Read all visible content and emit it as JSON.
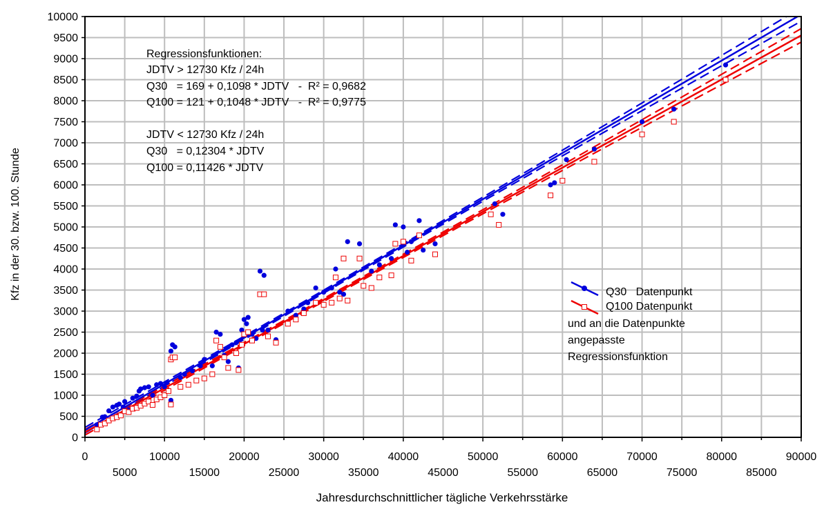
{
  "chart_data": {
    "type": "scatter",
    "title": "",
    "xlabel": "Jahresdurchschnittlicher tägliche Verkehrsstärke",
    "ylabel": "Kfz in der 30. bzw. 100. Stunde",
    "xlim": [
      0,
      90000
    ],
    "ylim": [
      0,
      10000
    ],
    "x_ticks_upper": [
      "0",
      "10000",
      "20000",
      "30000",
      "40000",
      "50000",
      "60000",
      "70000",
      "80000",
      "90000"
    ],
    "x_ticks_lower": [
      "5000",
      "15000",
      "25000",
      "35000",
      "45000",
      "55000",
      "65000",
      "75000",
      "85000"
    ],
    "y_ticks": [
      "0",
      "500",
      "1000",
      "1500",
      "2000",
      "2500",
      "3000",
      "3500",
      "4000",
      "4500",
      "5000",
      "5500",
      "6000",
      "6500",
      "7000",
      "7500",
      "8000",
      "8500",
      "9000",
      "9500",
      "10000"
    ],
    "grid": true,
    "legend_position": "right",
    "annotation": [
      "Regressionsfunktionen:",
      "JDTV > 12730 Kfz / 24h",
      "Q30   = 169 + 0,1098 * JDTV   -  R² = 0,9682",
      "Q100 = 121 + 0,1048 * JDTV   -  R² = 0,9775",
      "",
      "JDTV < 12730 Kfz / 24h",
      "Q30   = 0,12304 * JDTV",
      "Q100 = 0,11426 * JDTV"
    ],
    "legend": {
      "entries": [
        "Q30   Datenpunkt",
        "Q100 Datenpunkt"
      ],
      "note": [
        "und an die Datenpunkte",
        "angepasste",
        "Regressionsfunktion"
      ]
    },
    "colors": {
      "q30": "#0000dd",
      "q100": "#ee0000",
      "grid": "#bdbdbd"
    },
    "series": [
      {
        "name": "Q30   Datenpunkt",
        "marker": "circle",
        "points": [
          [
            1500,
            300
          ],
          [
            2200,
            480
          ],
          [
            2500,
            490
          ],
          [
            3000,
            630
          ],
          [
            3500,
            720
          ],
          [
            4000,
            760
          ],
          [
            4300,
            790
          ],
          [
            4800,
            720
          ],
          [
            5000,
            850
          ],
          [
            5500,
            650
          ],
          [
            6000,
            930
          ],
          [
            6500,
            980
          ],
          [
            6800,
            1100
          ],
          [
            7000,
            1150
          ],
          [
            7500,
            1180
          ],
          [
            8000,
            1200
          ],
          [
            8500,
            1000
          ],
          [
            9000,
            1250
          ],
          [
            9500,
            1280
          ],
          [
            10000,
            1200
          ],
          [
            10300,
            1300
          ],
          [
            10800,
            880
          ],
          [
            10800,
            2050
          ],
          [
            11000,
            2200
          ],
          [
            11300,
            2150
          ],
          [
            12000,
            1420
          ],
          [
            12500,
            1500
          ],
          [
            13500,
            1580
          ],
          [
            14500,
            1700
          ],
          [
            15000,
            1850
          ],
          [
            16000,
            1700
          ],
          [
            16500,
            2500
          ],
          [
            17000,
            2450
          ],
          [
            17500,
            1950
          ],
          [
            18000,
            1800
          ],
          [
            18500,
            2200
          ],
          [
            19000,
            2250
          ],
          [
            19300,
            1650
          ],
          [
            19700,
            2550
          ],
          [
            20000,
            2800
          ],
          [
            20300,
            2700
          ],
          [
            20500,
            2850
          ],
          [
            21000,
            2450
          ],
          [
            21500,
            2350
          ],
          [
            22000,
            3950
          ],
          [
            22300,
            2550
          ],
          [
            22500,
            3850
          ],
          [
            23000,
            2550
          ],
          [
            24000,
            2320
          ],
          [
            25500,
            3000
          ],
          [
            26500,
            2900
          ],
          [
            27500,
            3050
          ],
          [
            28000,
            3200
          ],
          [
            29000,
            3550
          ],
          [
            30000,
            3450
          ],
          [
            31000,
            3550
          ],
          [
            31500,
            4000
          ],
          [
            32000,
            3450
          ],
          [
            32500,
            3400
          ],
          [
            33000,
            4650
          ],
          [
            34500,
            4600
          ],
          [
            35000,
            3600
          ],
          [
            36000,
            3950
          ],
          [
            37000,
            4100
          ],
          [
            38500,
            4250
          ],
          [
            39000,
            5050
          ],
          [
            40000,
            5000
          ],
          [
            40500,
            4400
          ],
          [
            41000,
            4650
          ],
          [
            42000,
            5150
          ],
          [
            42500,
            4450
          ],
          [
            44000,
            4600
          ],
          [
            51500,
            5550
          ],
          [
            52500,
            5300
          ],
          [
            58500,
            6000
          ],
          [
            59000,
            6050
          ],
          [
            60500,
            6600
          ],
          [
            64000,
            6850
          ],
          [
            70000,
            7500
          ],
          [
            74000,
            7800
          ],
          [
            80500,
            8850
          ]
        ]
      },
      {
        "name": "Q100 Datenpunkt",
        "marker": "square",
        "points": [
          [
            1500,
            190
          ],
          [
            2000,
            300
          ],
          [
            2500,
            330
          ],
          [
            3000,
            400
          ],
          [
            3500,
            450
          ],
          [
            4000,
            480
          ],
          [
            4500,
            520
          ],
          [
            5000,
            620
          ],
          [
            5500,
            600
          ],
          [
            6000,
            680
          ],
          [
            6500,
            700
          ],
          [
            7000,
            750
          ],
          [
            7500,
            800
          ],
          [
            8000,
            850
          ],
          [
            8500,
            770
          ],
          [
            9000,
            900
          ],
          [
            9500,
            950
          ],
          [
            10000,
            1000
          ],
          [
            10500,
            1100
          ],
          [
            10800,
            780
          ],
          [
            10800,
            1850
          ],
          [
            11000,
            1900
          ],
          [
            11300,
            1900
          ],
          [
            12000,
            1200
          ],
          [
            13000,
            1250
          ],
          [
            14000,
            1350
          ],
          [
            15000,
            1400
          ],
          [
            16000,
            1500
          ],
          [
            16500,
            2300
          ],
          [
            17000,
            2150
          ],
          [
            17500,
            1900
          ],
          [
            18000,
            1650
          ],
          [
            19000,
            2000
          ],
          [
            19300,
            1600
          ],
          [
            19700,
            2200
          ],
          [
            20000,
            2450
          ],
          [
            20500,
            2500
          ],
          [
            21000,
            2300
          ],
          [
            22000,
            3400
          ],
          [
            22500,
            3400
          ],
          [
            23000,
            2400
          ],
          [
            24000,
            2250
          ],
          [
            25500,
            2700
          ],
          [
            26500,
            2800
          ],
          [
            27500,
            2950
          ],
          [
            29000,
            3200
          ],
          [
            30000,
            3150
          ],
          [
            31000,
            3200
          ],
          [
            31500,
            3800
          ],
          [
            32000,
            3300
          ],
          [
            32500,
            4250
          ],
          [
            33000,
            3250
          ],
          [
            34500,
            4250
          ],
          [
            35000,
            3600
          ],
          [
            36000,
            3550
          ],
          [
            37000,
            3800
          ],
          [
            38500,
            3850
          ],
          [
            39000,
            4600
          ],
          [
            40000,
            4650
          ],
          [
            41000,
            4200
          ],
          [
            42000,
            4800
          ],
          [
            44000,
            4350
          ],
          [
            51000,
            5300
          ],
          [
            52000,
            5050
          ],
          [
            58500,
            5750
          ],
          [
            60000,
            6100
          ],
          [
            64000,
            6550
          ],
          [
            70000,
            7200
          ],
          [
            74000,
            7500
          ],
          [
            80500,
            8500
          ]
        ]
      }
    ],
    "regression": [
      {
        "series": "Q30   Datenpunkt",
        "intercept": 169,
        "slope": 0.1098,
        "slope_low": 0.12304,
        "breakpoint": 12730
      },
      {
        "series": "Q100 Datenpunkt",
        "intercept": 121,
        "slope": 0.1048,
        "slope_low": 0.11426,
        "breakpoint": 12730
      }
    ]
  }
}
